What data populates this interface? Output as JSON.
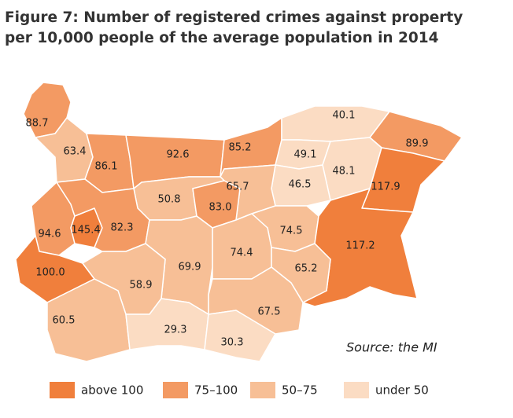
{
  "map": {
    "title": [
      "Figure 7: Number of registered crimes against property",
      "per 10,000 people of the average population in 2014"
    ],
    "source": "Source: the MI",
    "values": [
      88.7,
      63.4,
      86.1,
      92.6,
      85.2,
      40.1,
      89.9,
      49.1,
      48.1,
      46.5,
      117.9,
      65.7,
      50.8,
      83.0,
      94.6,
      145.4,
      82.3,
      74.5,
      117.2,
      74.4,
      100.0,
      69.9,
      65.2,
      58.9,
      67.5,
      60.5,
      29.3,
      30.3
    ],
    "value_labels": [
      "88.7",
      "63.4",
      "86.1",
      "92.6",
      "85.2",
      "40.1",
      "89.9",
      "49.1",
      "48.1",
      "46.5",
      "117.9",
      "65.7",
      "50.8",
      "83.0",
      "94.6",
      "145.4",
      "82.3",
      "74.5",
      "117.2",
      "74.4",
      "100.0",
      "69.9",
      "65.2",
      "58.9",
      "67.5",
      "60.5",
      "29.3",
      "30.3"
    ],
    "colors": [
      "#f39a63",
      "#f7bf96",
      "#f39a63",
      "#f39a63",
      "#f39a63",
      "#fbdcc3",
      "#f39a63",
      "#fbdcc3",
      "#fbdcc3",
      "#fbdcc3",
      "#f07f3c",
      "#f7bf96",
      "#f7bf96",
      "#f39a63",
      "#f39a63",
      "#f07f3c",
      "#f39a63",
      "#f7bf96",
      "#f07f3c",
      "#f7bf96",
      "#f07f3c",
      "#f7bf96",
      "#f7bf96",
      "#f7bf96",
      "#f7bf96",
      "#f7bf96",
      "#fbdcc3",
      "#fbdcc3"
    ],
    "legend": [
      {
        "label": "above 100",
        "color": "#f07f3c"
      },
      {
        "label": "75–100",
        "color": "#f39a63"
      },
      {
        "label": "50–75",
        "color": "#f7bf96"
      },
      {
        "label": "under 50",
        "color": "#fbdcc3"
      }
    ]
  }
}
